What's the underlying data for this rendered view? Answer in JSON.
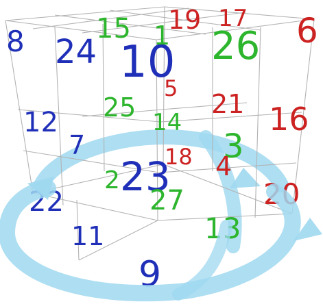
{
  "cube": {
    "line_color": "#b3b3b3",
    "arrow_color": "#9fd8f0",
    "numbers": [
      {
        "text": "8",
        "color": "#1f2fb8"
      },
      {
        "text": "24",
        "color": "#1f2fb8"
      },
      {
        "text": "15",
        "color": "#2db52d"
      },
      {
        "text": "10",
        "color": "#1f2fb8"
      },
      {
        "text": "1",
        "color": "#2db52d"
      },
      {
        "text": "19",
        "color": "#cc2222"
      },
      {
        "text": "17",
        "color": "#cc2222"
      },
      {
        "text": "26",
        "color": "#2db52d"
      },
      {
        "text": "6",
        "color": "#cc2222"
      },
      {
        "text": "5",
        "color": "#cc2222"
      },
      {
        "text": "25",
        "color": "#2db52d"
      },
      {
        "text": "21",
        "color": "#cc2222"
      },
      {
        "text": "16",
        "color": "#cc2222"
      },
      {
        "text": "12",
        "color": "#1f2fb8"
      },
      {
        "text": "14",
        "color": "#2db52d"
      },
      {
        "text": "7",
        "color": "#1f2fb8"
      },
      {
        "text": "18",
        "color": "#cc2222"
      },
      {
        "text": "3",
        "color": "#2db52d"
      },
      {
        "text": "2",
        "color": "#2db52d"
      },
      {
        "text": "23",
        "color": "#1f2fb8"
      },
      {
        "text": "4",
        "color": "#cc2222"
      },
      {
        "text": "27",
        "color": "#2db52d"
      },
      {
        "text": "20",
        "color": "#cc2222"
      },
      {
        "text": "22",
        "color": "#1f2fb8"
      },
      {
        "text": "11",
        "color": "#1f2fb8"
      },
      {
        "text": "13",
        "color": "#2db52d"
      },
      {
        "text": "9",
        "color": "#1f2fb8"
      }
    ]
  }
}
